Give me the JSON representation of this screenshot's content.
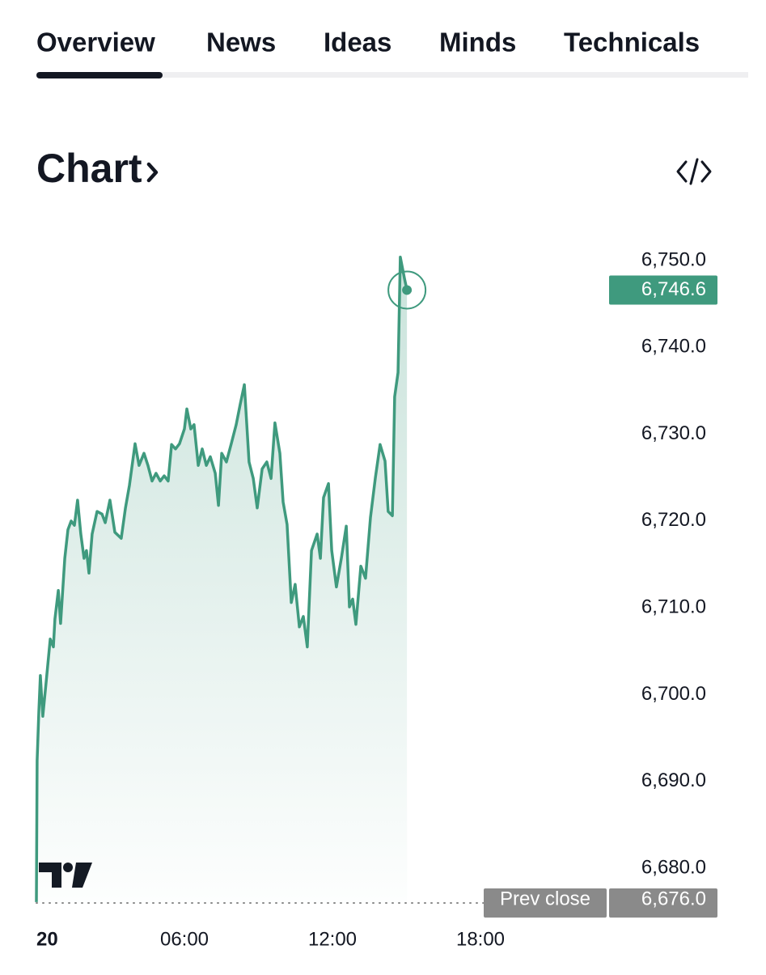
{
  "tabs": [
    "Overview",
    "News",
    "Ideas",
    "Minds",
    "Technicals"
  ],
  "heading": "Chart",
  "chart_data": {
    "type": "line",
    "color": "#3f9a7e",
    "x": [
      0,
      0.03,
      0.1,
      0.16,
      0.26,
      0.39,
      0.56,
      0.69,
      0.75,
      0.89,
      0.98,
      1.15,
      1.28,
      1.41,
      1.54,
      1.67,
      1.8,
      1.93,
      2.03,
      2.13,
      2.26,
      2.46,
      2.66,
      2.79,
      2.98,
      3.18,
      3.44,
      3.61,
      3.77,
      4,
      4.16,
      4.36,
      4.52,
      4.69,
      4.85,
      5.02,
      5.18,
      5.34,
      5.48,
      5.64,
      5.8,
      6,
      6.1,
      6.26,
      6.39,
      6.56,
      6.72,
      6.89,
      7.05,
      7.25,
      7.38,
      7.51,
      7.7,
      7.9,
      8.1,
      8.26,
      8.43,
      8.62,
      8.79,
      8.95,
      9.15,
      9.34,
      9.51,
      9.67,
      9.87,
      10,
      10.16,
      10.33,
      10.49,
      10.66,
      10.82,
      10.98,
      11.15,
      11.38,
      11.51,
      11.64,
      11.84,
      11.97,
      12.16,
      12.36,
      12.56,
      12.69,
      12.82,
      12.95,
      13.15,
      13.34,
      13.54,
      13.74,
      13.93,
      14.13,
      14.26,
      14.43,
      14.52,
      14.66,
      14.75,
      14.92,
      15.02
    ],
    "values": [
      6676.1,
      6692.4,
      6698,
      6702.2,
      6697.5,
      6701.3,
      6706.4,
      6705.5,
      6708.7,
      6712,
      6708.2,
      6715.7,
      6719,
      6720,
      6719.5,
      6722.4,
      6718.5,
      6715.7,
      6716.6,
      6714,
      6718.5,
      6721.1,
      6720.8,
      6719.8,
      6722.4,
      6718.7,
      6718,
      6721.5,
      6724.1,
      6728.9,
      6726.4,
      6727.8,
      6726.4,
      6724.6,
      6725.5,
      6724.6,
      6725.2,
      6724.6,
      6728.8,
      6728.3,
      6728.9,
      6730.6,
      6732.9,
      6730.6,
      6731.1,
      6726.4,
      6728.3,
      6726.4,
      6727.4,
      6725.5,
      6721.8,
      6727.8,
      6726.8,
      6728.9,
      6731.1,
      6733.4,
      6735.7,
      6726.8,
      6724.9,
      6721.5,
      6726,
      6726.8,
      6724.9,
      6731.3,
      6727.8,
      6722.2,
      6719.6,
      6710.6,
      6712.7,
      6707.8,
      6709,
      6705.5,
      6716.6,
      6718.5,
      6715.7,
      6722.7,
      6724.3,
      6716.6,
      6712.4,
      6715.7,
      6719.4,
      6710.1,
      6711,
      6708.1,
      6714.8,
      6713.4,
      6720.4,
      6725,
      6728.8,
      6726.9,
      6721.1,
      6720.6,
      6734.3,
      6737.1,
      6750.4,
      6747.9,
      6746.6
    ],
    "xlim": [
      0,
      24
    ],
    "xticks": [
      {
        "value": 0,
        "label": "20"
      },
      {
        "value": 6,
        "label": "06:00"
      },
      {
        "value": 12,
        "label": "12:00"
      },
      {
        "value": 18,
        "label": "18:00"
      }
    ],
    "ylim": [
      6676,
      6752
    ],
    "yticks": [
      {
        "value": 6680,
        "label": "6,680.0"
      },
      {
        "value": 6690,
        "label": "6,690.0"
      },
      {
        "value": 6700,
        "label": "6,700.0"
      },
      {
        "value": 6710,
        "label": "6,710.0"
      },
      {
        "value": 6720,
        "label": "6,720.0"
      },
      {
        "value": 6730,
        "label": "6,730.0"
      },
      {
        "value": 6740,
        "label": "6,740.0"
      },
      {
        "value": 6750,
        "label": "6,750.0"
      }
    ],
    "current_price": {
      "value": 6746.6,
      "label": "6,746.6"
    },
    "prev_close": {
      "name": "Prev close",
      "value": 6676,
      "label": "6,676.0"
    }
  }
}
